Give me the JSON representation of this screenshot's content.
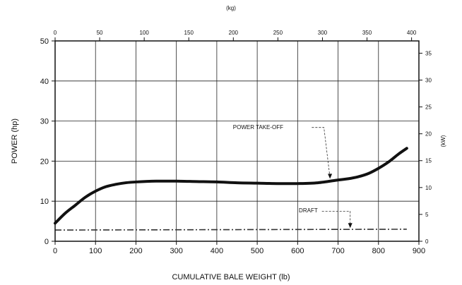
{
  "chart_data": {
    "type": "line",
    "title": "",
    "xlabel": "CUMULATIVE BALE WEIGHT (lb)",
    "ylabel": "POWER (hp)",
    "x2label": "(kg)",
    "y2label": "(kW)",
    "xlim": [
      0,
      900
    ],
    "ylim": [
      0,
      50
    ],
    "x_ticks": [
      0,
      100,
      200,
      300,
      400,
      500,
      600,
      700,
      800,
      900
    ],
    "y_ticks": [
      0,
      10,
      20,
      30,
      40,
      50
    ],
    "x2_ticks": [
      0,
      50,
      100,
      150,
      200,
      250,
      300,
      350,
      400
    ],
    "y2_ticks": [
      0,
      5,
      10,
      15,
      20,
      25,
      30,
      35
    ],
    "grid": true,
    "series": [
      {
        "name": "POWER TAKE-OFF",
        "x": [
          0,
          25,
          50,
          75,
          100,
          125,
          150,
          175,
          200,
          250,
          300,
          350,
          400,
          450,
          500,
          550,
          600,
          650,
          700,
          725,
          750,
          775,
          800,
          825,
          850,
          870
        ],
        "y": [
          4.5,
          7.0,
          9.0,
          11.0,
          12.5,
          13.6,
          14.2,
          14.6,
          14.8,
          15.0,
          15.0,
          14.9,
          14.8,
          14.6,
          14.5,
          14.4,
          14.4,
          14.6,
          15.3,
          15.6,
          16.1,
          16.9,
          18.2,
          19.8,
          21.8,
          23.2
        ]
      },
      {
        "name": "DRAFT",
        "x": [
          0,
          870
        ],
        "y": [
          2.8,
          3.0
        ]
      }
    ],
    "annotations": [
      {
        "text": "POWER TAKE-OFF",
        "series": 0
      },
      {
        "text": "DRAFT",
        "series": 1
      }
    ]
  }
}
